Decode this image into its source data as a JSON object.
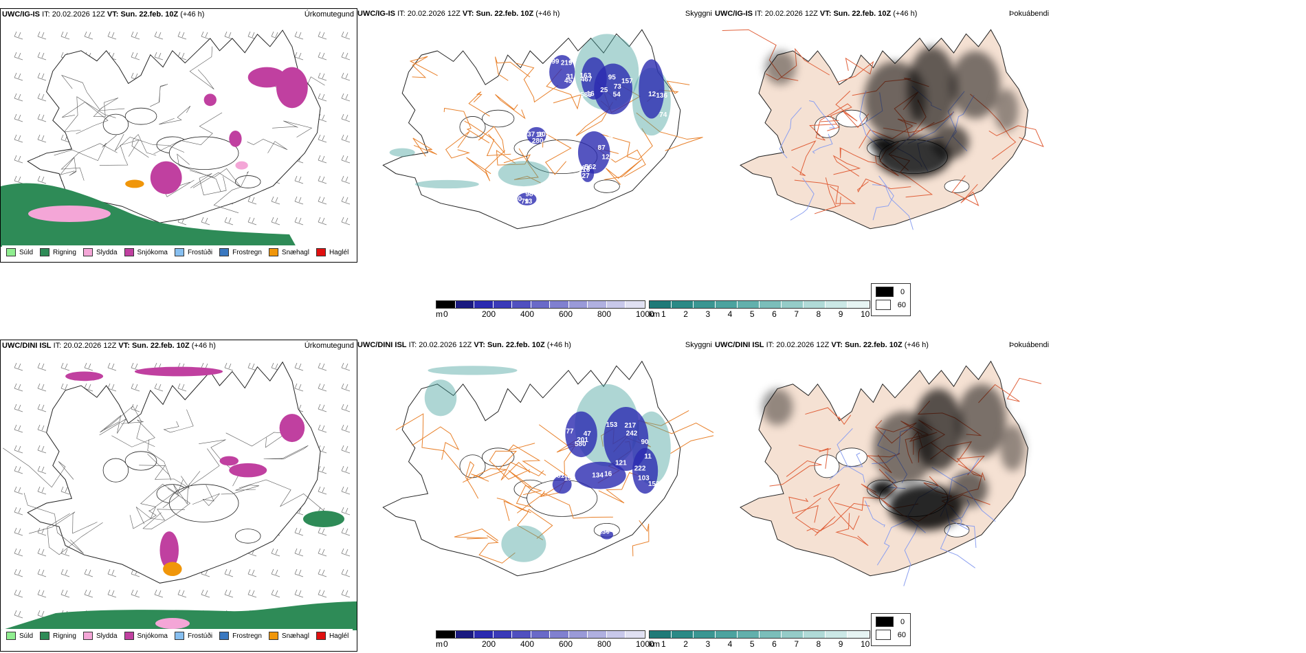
{
  "rows": [
    {
      "precip": {
        "model": "UWC/IG-IS",
        "it_label": "IT:",
        "it_value": "20.02.2026 12Z",
        "vt_label": "VT:",
        "vt_value": "Sun. 22.feb. 10Z",
        "lead": "(+46 h)",
        "type_label": "Úrkomutegund"
      },
      "cloud": {
        "model": "UWC/IG-IS",
        "it_label": "IT:",
        "it_value": "20.02.2026 12Z",
        "vt_label": "VT:",
        "vt_value": "Sun. 22.feb. 10Z",
        "lead": "(+46 h)",
        "type_label": "Skyggni"
      },
      "fog": {
        "model": "UWC/IG-IS",
        "it_label": "IT:",
        "it_value": "20.02.2026 12Z",
        "vt_label": "VT:",
        "vt_value": "Sun. 22.feb. 10Z",
        "lead": "(+46 h)",
        "type_label": "Þokuábendi"
      },
      "ceiling_labels": [
        "219",
        "467",
        "157",
        "12",
        "280",
        "33",
        "116",
        "13",
        "99",
        "585",
        "54",
        "155",
        "18",
        "120",
        "27",
        "80",
        "34",
        "25",
        "73",
        "136",
        "101",
        "87",
        "103",
        "98",
        "45",
        "163",
        "95",
        "74",
        "137",
        "47",
        "562",
        "79",
        "31",
        "16"
      ],
      "visibility_labels": []
    },
    {
      "precip": {
        "model": "UWC/DINI ISL",
        "it_label": "IT:",
        "it_value": "20.02.2026 12Z",
        "vt_label": "VT:",
        "vt_value": "Sun. 22.feb. 10Z",
        "lead": "(+46 h)",
        "type_label": "Úrkomutegund"
      },
      "cloud": {
        "model": "UWC/DINI ISL",
        "it_label": "IT:",
        "it_value": "20.02.2026 12Z",
        "vt_label": "VT:",
        "vt_value": "Sun. 22.feb. 10Z",
        "lead": "(+46 h)",
        "type_label": "Skyggni"
      },
      "fog": {
        "model": "UWC/DINI ISL",
        "it_label": "IT:",
        "it_value": "20.02.2026 12Z",
        "vt_label": "VT:",
        "vt_value": "Sun. 22.feb. 10Z",
        "lead": "(+46 h)",
        "type_label": "Þokuábendi"
      },
      "ceiling_labels": [
        "47",
        "217",
        "162",
        "159",
        "153",
        "16",
        "201",
        "242",
        "16",
        "82",
        "222",
        "130",
        "580",
        "153",
        "121",
        "81",
        "11",
        "146",
        "77",
        "90",
        "134",
        "66",
        "103"
      ],
      "visibility_labels": []
    }
  ],
  "precip_legend": [
    {
      "label": "Súld",
      "color": "#90ee90"
    },
    {
      "label": "Rigning",
      "color": "#2e8b57"
    },
    {
      "label": "Slydda",
      "color": "#f4a6d7"
    },
    {
      "label": "Snjókoma",
      "color": "#c040a0"
    },
    {
      "label": "Frostúði",
      "color": "#87bff0"
    },
    {
      "label": "Frostregn",
      "color": "#3a78c0"
    },
    {
      "label": "Snæhagl",
      "color": "#f0960a"
    },
    {
      "label": "Haglél",
      "color": "#e01010"
    }
  ],
  "ceiling_bar": {
    "unit": "m",
    "ticks": [
      "0",
      "200",
      "400",
      "600",
      "800",
      "1000"
    ],
    "colors": [
      "#000000",
      "#1a1a80",
      "#2a2ab0",
      "#3a3ab8",
      "#5050c0",
      "#6a6ac8",
      "#8080d0",
      "#9a9ad8",
      "#b0b0e0",
      "#c8c8ea",
      "#e0e0f2"
    ]
  },
  "visibility_bar": {
    "unit": "km",
    "ticks": [
      "1",
      "2",
      "3",
      "4",
      "5",
      "6",
      "7",
      "8",
      "9",
      "10"
    ],
    "colors": [
      "#1f7a78",
      "#2b8a86",
      "#3a9692",
      "#4ca39f",
      "#62b0ac",
      "#7bbeba",
      "#95ccc8",
      "#b0dad7",
      "#cbe8e6",
      "#e6f4f3"
    ]
  },
  "fog_scale": {
    "items": [
      {
        "label": "0",
        "color": "#000000"
      },
      {
        "label": "60",
        "color": "#ffffff"
      }
    ]
  },
  "colors": {
    "land_fog": "#f5e1d3",
    "road": "#e8802a",
    "road_fog": "#e0603a",
    "river": "#8ca0f0",
    "snow": "#c040a0",
    "rain": "#2e8b57",
    "sleet": "#f4a6d7",
    "hail_snow": "#f0960a",
    "ceiling": "#2a2ab0",
    "visibility": "#4ca39f"
  }
}
